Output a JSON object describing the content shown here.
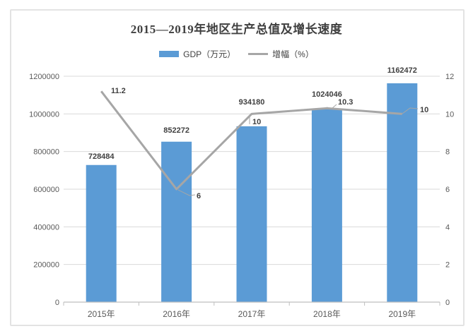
{
  "chart_data": {
    "type": "combo-bar-line",
    "title": "2015—2019年地区生产总值及增长速度",
    "categories": [
      "2015年",
      "2016年",
      "2017年",
      "2018年",
      "2019年"
    ],
    "series": [
      {
        "name": "GDP（万元）",
        "type": "bar",
        "axis": "left",
        "color": "#5B9BD5",
        "values": [
          728484,
          852272,
          934180,
          1024046,
          1162472
        ],
        "data_labels": [
          "728484",
          "852272",
          "934180",
          "1024046",
          "1162472"
        ]
      },
      {
        "name": "增幅（%）",
        "type": "line",
        "axis": "right",
        "color": "#A6A6A6",
        "values": [
          11.2,
          6,
          10,
          10.3,
          10
        ],
        "data_labels": [
          "11.2",
          "6",
          "10",
          "10.3",
          "10"
        ]
      }
    ],
    "y_axis_left": {
      "min": 0,
      "max": 1200000,
      "tick_labels": [
        "0",
        "200000",
        "400000",
        "600000",
        "800000",
        "1000000",
        "1200000"
      ]
    },
    "y_axis_right": {
      "min": 0,
      "max": 12,
      "tick_labels": [
        "0",
        "2",
        "4",
        "6",
        "8",
        "10",
        "12"
      ]
    },
    "grid": true,
    "legend_position": "top"
  },
  "colors": {
    "bar": "#5B9BD5",
    "line": "#A6A6A6",
    "gridline": "#D9D9D9",
    "axis_line": "#BFBFBF",
    "tick_text": "#595959",
    "label_text": "#404040",
    "frame_border": "#E3E3E3"
  }
}
